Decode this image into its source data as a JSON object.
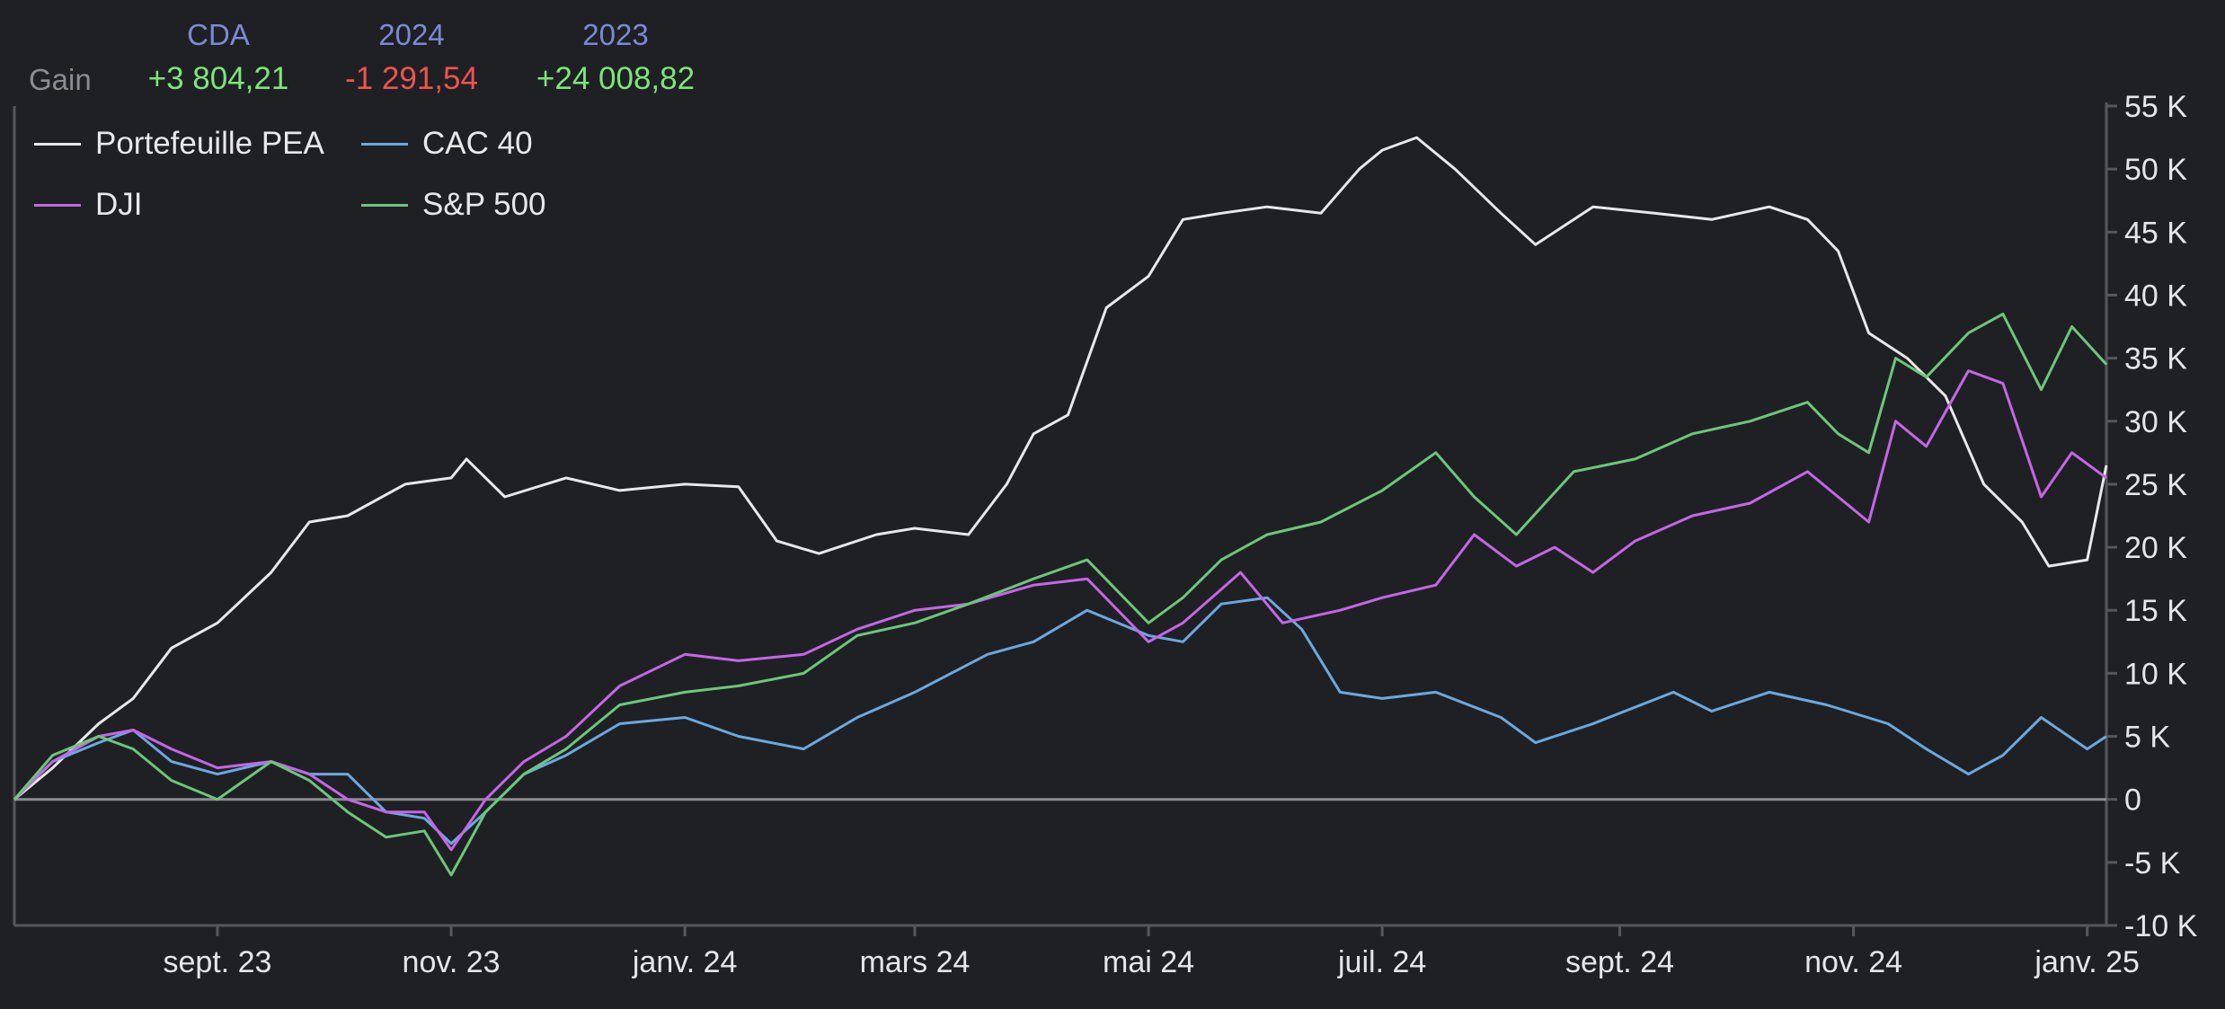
{
  "header": {
    "row_label": "Gain",
    "columns": [
      {
        "label": "CDA",
        "value": "+3 804,21",
        "sign": "pos"
      },
      {
        "label": "2024",
        "value": "-1 291,54",
        "sign": "neg"
      },
      {
        "label": "2023",
        "value": "+24 008,82",
        "sign": "pos"
      }
    ]
  },
  "colors": {
    "background": "#1f2024",
    "axis": "#55575c",
    "positive": "#7ee57a",
    "negative": "#ef5350",
    "header_label": "#7a8ad6"
  },
  "chart_data": {
    "type": "line",
    "title": "",
    "xlabel": "",
    "ylabel": "",
    "x_ticks": [
      "sept. 23",
      "nov. 23",
      "janv. 24",
      "mars 24",
      "mai 24",
      "juil. 24",
      "sept. 24",
      "nov. 24",
      "janv. 25"
    ],
    "x_range": [
      "2023-07-10",
      "2025-01-06"
    ],
    "y_ticks": [
      "55 K",
      "50 K",
      "45 K",
      "40 K",
      "35 K",
      "30 K",
      "25 K",
      "20 K",
      "15 K",
      "10 K",
      "5 K",
      "0",
      "-5 K",
      "-10 K"
    ],
    "ylim": [
      -10000,
      55000
    ],
    "y_axis_side": "right",
    "zero_line": true,
    "legend_position": "top-left",
    "series": [
      {
        "name": "Portefeuille PEA",
        "color": "#e8e8ea",
        "points": [
          [
            "2023-07-10",
            0
          ],
          [
            "2023-07-20",
            2500
          ],
          [
            "2023-08-01",
            6000
          ],
          [
            "2023-08-10",
            8000
          ],
          [
            "2023-08-20",
            12000
          ],
          [
            "2023-09-01",
            14000
          ],
          [
            "2023-09-15",
            18000
          ],
          [
            "2023-09-25",
            22000
          ],
          [
            "2023-10-05",
            22500
          ],
          [
            "2023-10-20",
            25000
          ],
          [
            "2023-11-01",
            25500
          ],
          [
            "2023-11-05",
            27000
          ],
          [
            "2023-11-15",
            24000
          ],
          [
            "2023-12-01",
            25500
          ],
          [
            "2023-12-15",
            24500
          ],
          [
            "2024-01-01",
            25000
          ],
          [
            "2024-01-15",
            24800
          ],
          [
            "2024-01-25",
            20500
          ],
          [
            "2024-02-05",
            19500
          ],
          [
            "2024-02-20",
            21000
          ],
          [
            "2024-03-01",
            21500
          ],
          [
            "2024-03-15",
            21000
          ],
          [
            "2024-03-25",
            25000
          ],
          [
            "2024-04-01",
            29000
          ],
          [
            "2024-04-10",
            30500
          ],
          [
            "2024-04-20",
            39000
          ],
          [
            "2024-05-01",
            41500
          ],
          [
            "2024-05-10",
            46000
          ],
          [
            "2024-05-20",
            46500
          ],
          [
            "2024-06-01",
            47000
          ],
          [
            "2024-06-15",
            46500
          ],
          [
            "2024-06-25",
            50000
          ],
          [
            "2024-07-01",
            51500
          ],
          [
            "2024-07-10",
            52500
          ],
          [
            "2024-07-20",
            50000
          ],
          [
            "2024-08-01",
            46500
          ],
          [
            "2024-08-10",
            44000
          ],
          [
            "2024-08-25",
            47000
          ],
          [
            "2024-09-10",
            46500
          ],
          [
            "2024-09-25",
            46000
          ],
          [
            "2024-10-10",
            47000
          ],
          [
            "2024-10-20",
            46000
          ],
          [
            "2024-10-28",
            43500
          ],
          [
            "2024-11-05",
            37000
          ],
          [
            "2024-11-15",
            35000
          ],
          [
            "2024-11-25",
            32000
          ],
          [
            "2024-12-05",
            25000
          ],
          [
            "2024-12-15",
            22000
          ],
          [
            "2024-12-22",
            18500
          ],
          [
            "2025-01-01",
            19000
          ],
          [
            "2025-01-06",
            26500
          ]
        ]
      },
      {
        "name": "CAC 40",
        "color": "#6aa9e0",
        "points": [
          [
            "2023-07-10",
            0
          ],
          [
            "2023-07-20",
            3000
          ],
          [
            "2023-08-01",
            4500
          ],
          [
            "2023-08-10",
            5500
          ],
          [
            "2023-08-20",
            3000
          ],
          [
            "2023-09-01",
            2000
          ],
          [
            "2023-09-15",
            3000
          ],
          [
            "2023-09-25",
            2000
          ],
          [
            "2023-10-05",
            2000
          ],
          [
            "2023-10-15",
            -1000
          ],
          [
            "2023-10-25",
            -1500
          ],
          [
            "2023-11-01",
            -3500
          ],
          [
            "2023-11-10",
            -1000
          ],
          [
            "2023-11-20",
            2000
          ],
          [
            "2023-12-01",
            3500
          ],
          [
            "2023-12-15",
            6000
          ],
          [
            "2024-01-01",
            6500
          ],
          [
            "2024-01-15",
            5000
          ],
          [
            "2024-02-01",
            4000
          ],
          [
            "2024-02-15",
            6500
          ],
          [
            "2024-03-01",
            8500
          ],
          [
            "2024-03-20",
            11500
          ],
          [
            "2024-04-01",
            12500
          ],
          [
            "2024-04-15",
            15000
          ],
          [
            "2024-05-01",
            13000
          ],
          [
            "2024-05-10",
            12500
          ],
          [
            "2024-05-20",
            15500
          ],
          [
            "2024-06-01",
            16000
          ],
          [
            "2024-06-10",
            13500
          ],
          [
            "2024-06-20",
            8500
          ],
          [
            "2024-07-01",
            8000
          ],
          [
            "2024-07-15",
            8500
          ],
          [
            "2024-08-01",
            6500
          ],
          [
            "2024-08-10",
            4500
          ],
          [
            "2024-08-25",
            6000
          ],
          [
            "2024-09-15",
            8500
          ],
          [
            "2024-09-25",
            7000
          ],
          [
            "2024-10-10",
            8500
          ],
          [
            "2024-10-25",
            7500
          ],
          [
            "2024-11-10",
            6000
          ],
          [
            "2024-11-20",
            4000
          ],
          [
            "2024-12-01",
            2000
          ],
          [
            "2024-12-10",
            3500
          ],
          [
            "2024-12-20",
            6500
          ],
          [
            "2025-01-01",
            4000
          ],
          [
            "2025-01-06",
            5000
          ]
        ]
      },
      {
        "name": "DJI",
        "color": "#c566e6",
        "points": [
          [
            "2023-07-10",
            0
          ],
          [
            "2023-07-20",
            3000
          ],
          [
            "2023-08-01",
            5000
          ],
          [
            "2023-08-10",
            5500
          ],
          [
            "2023-08-20",
            4000
          ],
          [
            "2023-09-01",
            2500
          ],
          [
            "2023-09-15",
            3000
          ],
          [
            "2023-09-25",
            2000
          ],
          [
            "2023-10-05",
            0
          ],
          [
            "2023-10-15",
            -1000
          ],
          [
            "2023-10-25",
            -1000
          ],
          [
            "2023-11-01",
            -4000
          ],
          [
            "2023-11-10",
            0
          ],
          [
            "2023-11-20",
            3000
          ],
          [
            "2023-12-01",
            5000
          ],
          [
            "2023-12-15",
            9000
          ],
          [
            "2024-01-01",
            11500
          ],
          [
            "2024-01-15",
            11000
          ],
          [
            "2024-02-01",
            11500
          ],
          [
            "2024-02-15",
            13500
          ],
          [
            "2024-03-01",
            15000
          ],
          [
            "2024-03-15",
            15500
          ],
          [
            "2024-04-01",
            17000
          ],
          [
            "2024-04-15",
            17500
          ],
          [
            "2024-05-01",
            12500
          ],
          [
            "2024-05-10",
            14000
          ],
          [
            "2024-05-25",
            18000
          ],
          [
            "2024-06-05",
            14000
          ],
          [
            "2024-06-20",
            15000
          ],
          [
            "2024-07-01",
            16000
          ],
          [
            "2024-07-15",
            17000
          ],
          [
            "2024-07-25",
            21000
          ],
          [
            "2024-08-05",
            18500
          ],
          [
            "2024-08-15",
            20000
          ],
          [
            "2024-08-25",
            18000
          ],
          [
            "2024-09-05",
            20500
          ],
          [
            "2024-09-20",
            22500
          ],
          [
            "2024-10-05",
            23500
          ],
          [
            "2024-10-20",
            26000
          ],
          [
            "2024-10-28",
            24000
          ],
          [
            "2024-11-05",
            22000
          ],
          [
            "2024-11-12",
            30000
          ],
          [
            "2024-11-20",
            28000
          ],
          [
            "2024-12-01",
            34000
          ],
          [
            "2024-12-10",
            33000
          ],
          [
            "2024-12-20",
            24000
          ],
          [
            "2024-12-28",
            27500
          ],
          [
            "2025-01-06",
            25500
          ]
        ]
      },
      {
        "name": "S&P 500",
        "color": "#6cc77a",
        "points": [
          [
            "2023-07-10",
            0
          ],
          [
            "2023-07-20",
            3500
          ],
          [
            "2023-08-01",
            5000
          ],
          [
            "2023-08-10",
            4000
          ],
          [
            "2023-08-20",
            1500
          ],
          [
            "2023-09-01",
            0
          ],
          [
            "2023-09-15",
            3000
          ],
          [
            "2023-09-25",
            1500
          ],
          [
            "2023-10-05",
            -1000
          ],
          [
            "2023-10-15",
            -3000
          ],
          [
            "2023-10-25",
            -2500
          ],
          [
            "2023-11-01",
            -6000
          ],
          [
            "2023-11-10",
            -1000
          ],
          [
            "2023-11-20",
            2000
          ],
          [
            "2023-12-01",
            4000
          ],
          [
            "2023-12-15",
            7500
          ],
          [
            "2024-01-01",
            8500
          ],
          [
            "2024-01-15",
            9000
          ],
          [
            "2024-02-01",
            10000
          ],
          [
            "2024-02-15",
            13000
          ],
          [
            "2024-03-01",
            14000
          ],
          [
            "2024-03-15",
            15500
          ],
          [
            "2024-04-01",
            17500
          ],
          [
            "2024-04-15",
            19000
          ],
          [
            "2024-05-01",
            14000
          ],
          [
            "2024-05-10",
            16000
          ],
          [
            "2024-05-20",
            19000
          ],
          [
            "2024-06-01",
            21000
          ],
          [
            "2024-06-15",
            22000
          ],
          [
            "2024-07-01",
            24500
          ],
          [
            "2024-07-15",
            27500
          ],
          [
            "2024-07-25",
            24000
          ],
          [
            "2024-08-05",
            21000
          ],
          [
            "2024-08-20",
            26000
          ],
          [
            "2024-09-05",
            27000
          ],
          [
            "2024-09-20",
            29000
          ],
          [
            "2024-10-05",
            30000
          ],
          [
            "2024-10-20",
            31500
          ],
          [
            "2024-10-28",
            29000
          ],
          [
            "2024-11-05",
            27500
          ],
          [
            "2024-11-12",
            35000
          ],
          [
            "2024-11-20",
            33500
          ],
          [
            "2024-12-01",
            37000
          ],
          [
            "2024-12-10",
            38500
          ],
          [
            "2024-12-20",
            32500
          ],
          [
            "2024-12-28",
            37500
          ],
          [
            "2025-01-06",
            34500
          ]
        ]
      }
    ]
  }
}
